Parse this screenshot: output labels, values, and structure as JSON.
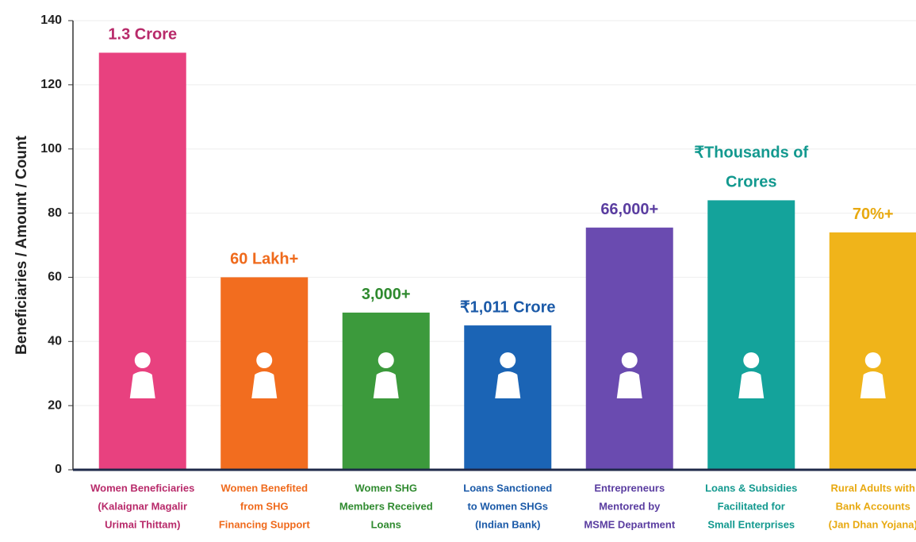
{
  "chart_data": {
    "type": "bar",
    "y_label": "Beneficiaries / Amount / Count",
    "categories": [
      [
        "Women Beneficiaries",
        "(Kalaignar Magalir",
        "Urimai Thittam)"
      ],
      [
        "Women Benefited",
        "from SHG",
        "Financing Support"
      ],
      [
        "Women SHG",
        "Members Received",
        "Loans"
      ],
      [
        "Loans Sanctioned",
        "to Women SHGs",
        "(Indian Bank)"
      ],
      [
        "Entrepreneurs",
        "Mentored by",
        "MSME Department"
      ],
      [
        "Loans & Subsidies",
        "Facilitated for",
        "Small Enterprises"
      ],
      [
        "Rural Adults with",
        "Bank Accounts",
        "(Jan Dhan Yojana)"
      ]
    ],
    "values": [
      130,
      60,
      49,
      45,
      75.5,
      84,
      74
    ],
    "bar_labels": [
      [
        "1.3 Crore"
      ],
      [
        "60 Lakh+"
      ],
      [
        "3,000+"
      ],
      [
        "₹1,011 Crore"
      ],
      [
        "66,000+"
      ],
      [
        "₹Thousands of",
        "Crores"
      ],
      [
        "70%+"
      ]
    ],
    "colors": [
      "#e8417f",
      "#f26d1f",
      "#3c9a3c",
      "#1b64b5",
      "#6a4bb0",
      "#14a39b",
      "#f0b41a"
    ],
    "label_colors": [
      "#b82a6a",
      "#ef6a1c",
      "#2f8a2f",
      "#1b5aa8",
      "#5a3da0",
      "#13998f",
      "#e8a910"
    ],
    "ylim": [
      0,
      140
    ],
    "yticks": [
      0,
      20,
      40,
      60,
      80,
      100,
      120,
      140
    ],
    "grid": true
  }
}
